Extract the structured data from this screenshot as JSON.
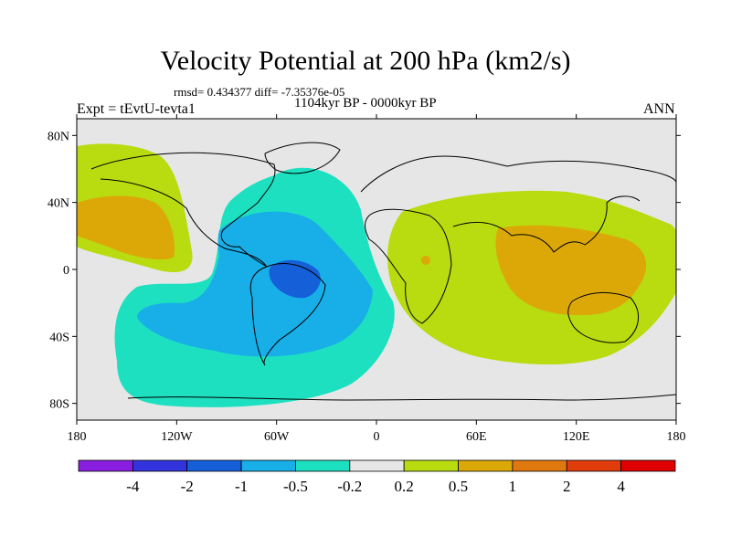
{
  "header": {
    "title": "Velocity Potential at 200 hPa (km2/s)",
    "stats": "rmsd= 0.434377 diff= -7.35376e-05",
    "period": "1104kyr BP - 0000kyr BP",
    "experiment": "Expt = tEvtU-tevta1",
    "season": "ANN"
  },
  "axes": {
    "lat_labels": [
      "80N",
      "40N",
      "0",
      "40S",
      "80S"
    ],
    "lon_labels": [
      "180",
      "120W",
      "60W",
      "0",
      "60E",
      "120E",
      "180"
    ]
  },
  "colorbar": {
    "labels": [
      "-4",
      "-2",
      "-1",
      "-0.5",
      "-0.2",
      "0.2",
      "0.5",
      "1",
      "2",
      "4"
    ],
    "colors": [
      "#8a1ee0",
      "#3333dd",
      "#1560d8",
      "#18aee8",
      "#1de0c0",
      "#e6e6e6",
      "#b8dc10",
      "#dca808",
      "#e07810",
      "#e03c0c",
      "#e00000"
    ]
  }
}
